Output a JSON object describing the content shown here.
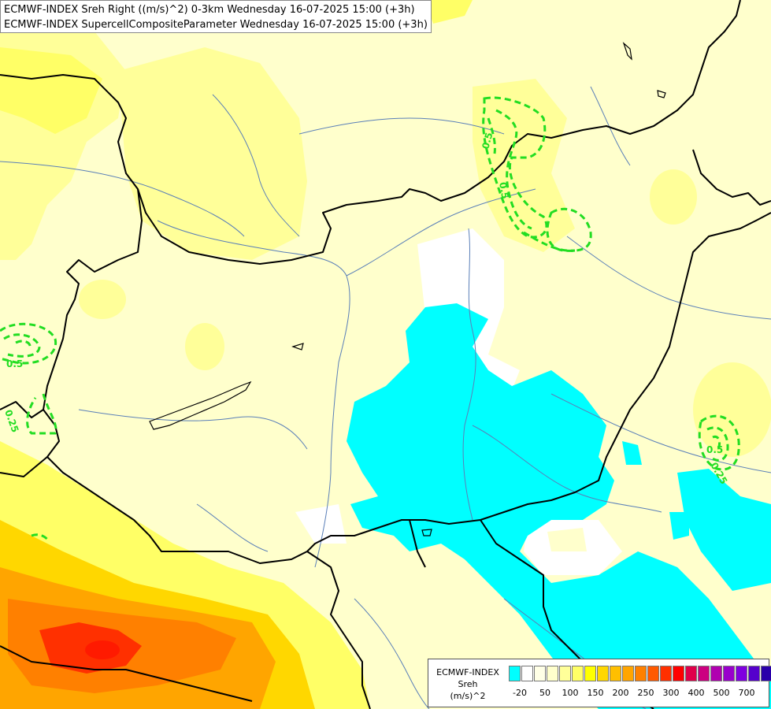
{
  "titles": {
    "line1": "ECMWF-INDEX Sreh Right ((m/s)^2) 0-3km Wednesday 16-07-2025 15:00 (+3h)",
    "line2": "ECMWF-INDEX SupercellCompositeParameter Wednesday 16-07-2025 15:00 (+3h)"
  },
  "legend": {
    "line1": "ECMWF-INDEX",
    "line2": "Sreh",
    "line3": "(m/s)^2",
    "colors": [
      "#00ffff",
      "#ffffff",
      "#ffffe6",
      "#ffffcc",
      "#ffff99",
      "#ffff66",
      "#ffff00",
      "#ffd700",
      "#ffbf00",
      "#ffa500",
      "#ff8000",
      "#ff5a00",
      "#ff3000",
      "#ff0000",
      "#e0004a",
      "#cc0080",
      "#b000b0",
      "#9900cc",
      "#7f00e0",
      "#5500cc",
      "#2a00aa",
      "#000080"
    ],
    "ticks": [
      "-20",
      "50",
      "100",
      "150",
      "200",
      "250",
      "300",
      "400",
      "500",
      "700"
    ]
  },
  "contour_labels": [
    "0.5",
    "0.5",
    "0.25",
    "0.5",
    "0.5",
    "0.25"
  ]
}
